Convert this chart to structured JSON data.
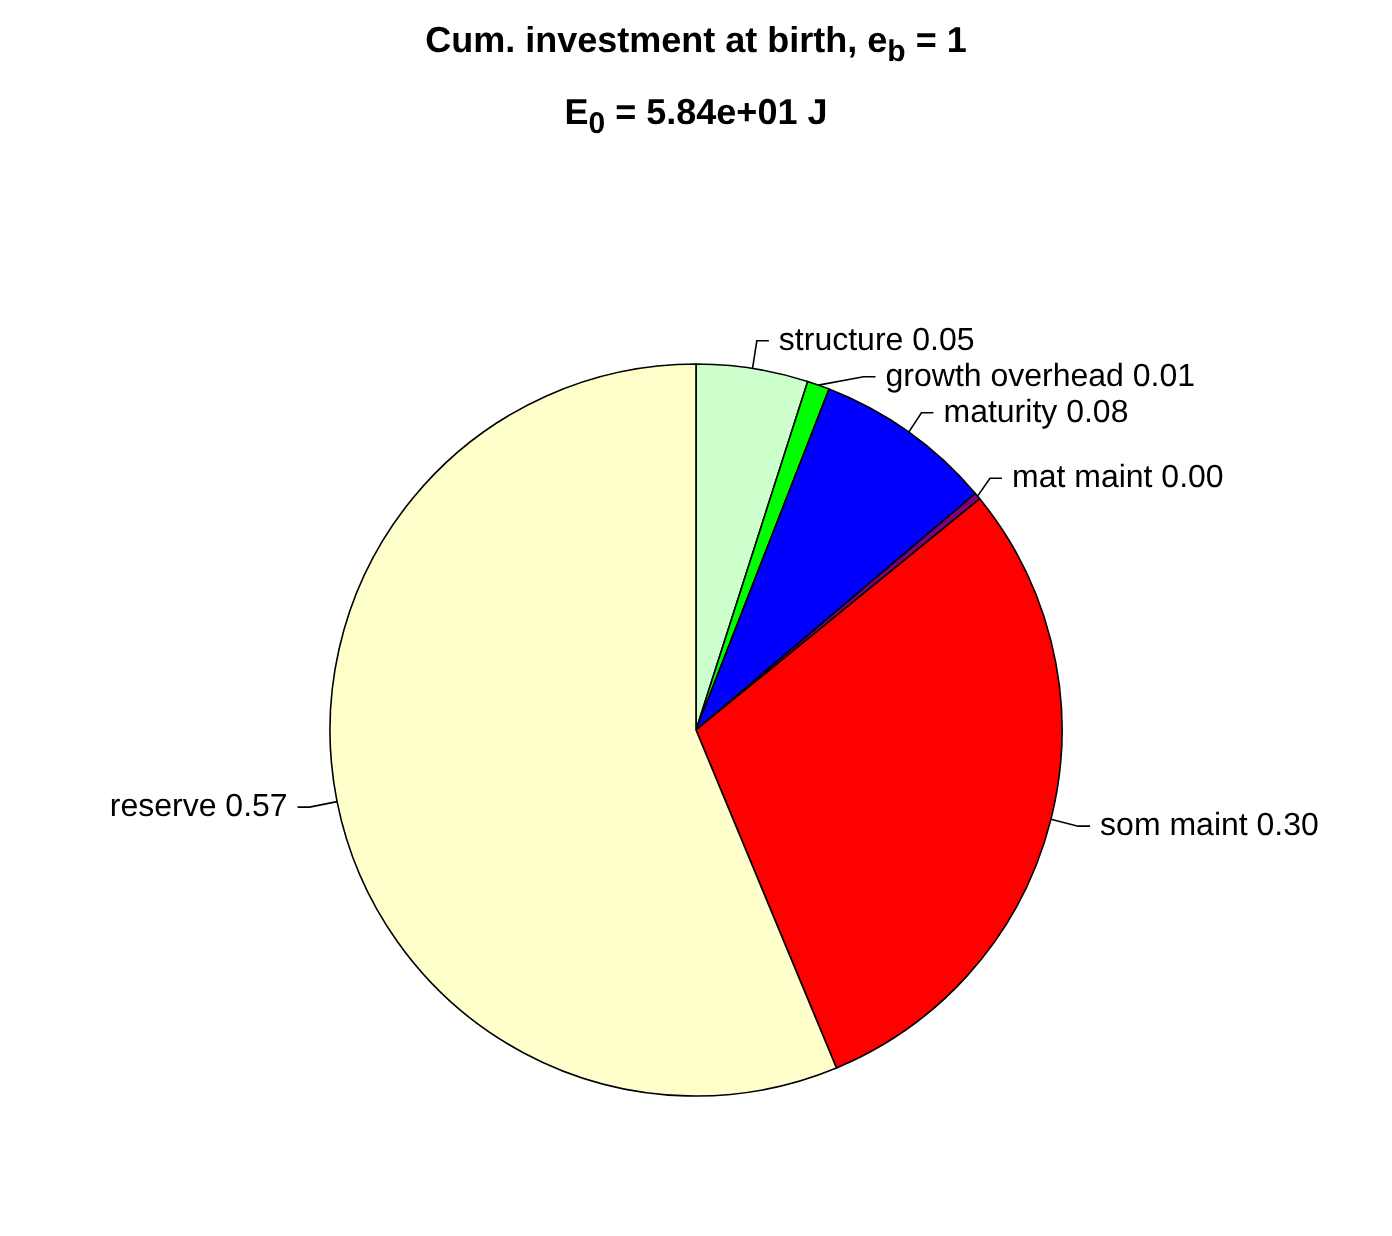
{
  "chart_data": {
    "type": "pie",
    "title": "Cum. investment at birth, e$_{b}$ = 1",
    "subtitle": "E$_{0}$ = 5.84e+01 J",
    "categories": [
      "structure",
      "growth overhead",
      "maturity",
      "mat maint",
      "som maint",
      "reserve"
    ],
    "values": [
      0.05,
      0.01,
      0.08,
      0.003,
      0.3,
      0.57
    ],
    "value_labels": [
      "0.05",
      "0.01",
      "0.08",
      "0.00",
      "0.30",
      "0.57"
    ],
    "colors": [
      "#ccffcc",
      "#00ff00",
      "#0000ff",
      "#800080",
      "#ff0000",
      "#ffffcc"
    ],
    "legend": false
  }
}
